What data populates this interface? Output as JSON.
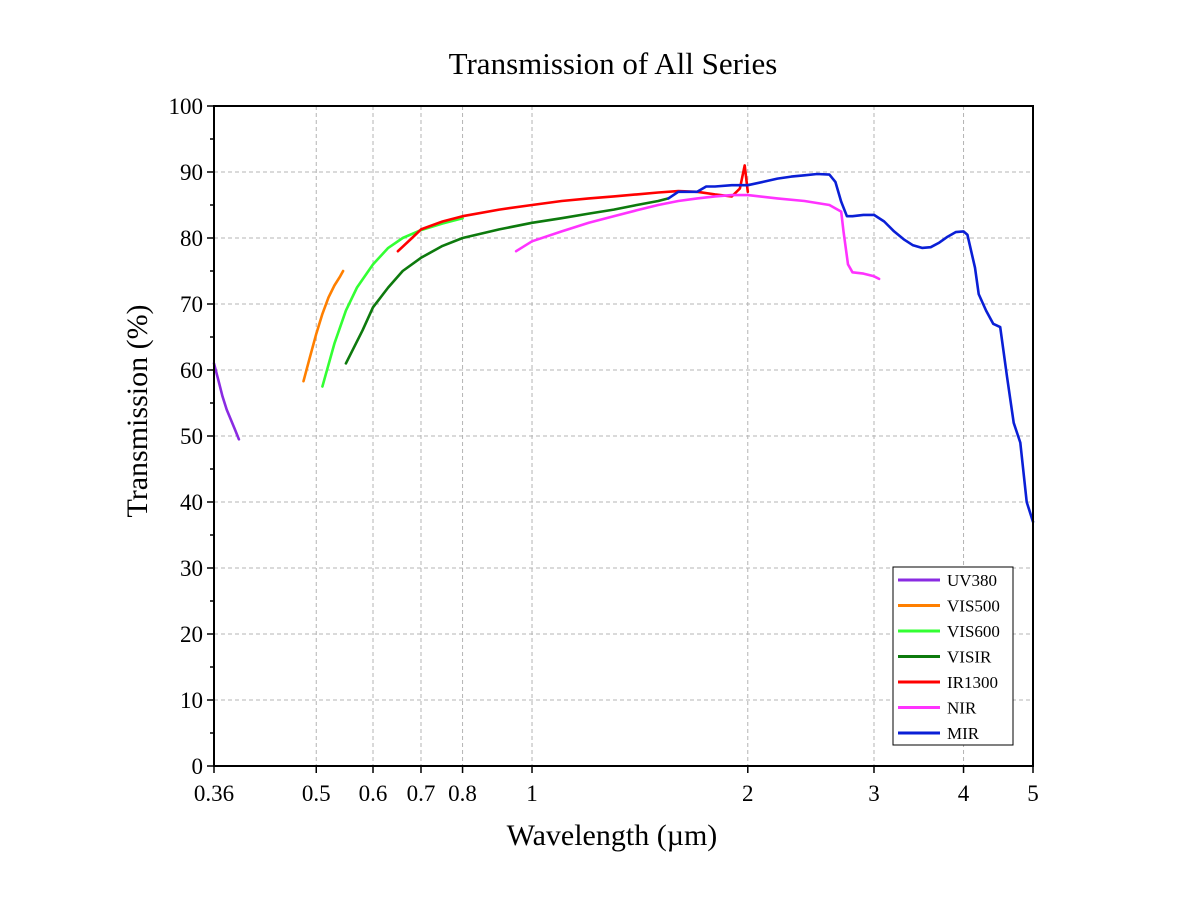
{
  "chart_data": {
    "type": "line",
    "title": "Transmission of All Series",
    "xlabel": "Wavelength (µm)",
    "ylabel": "Transmission (%)",
    "xscale": "log",
    "xlim": [
      0.36,
      5
    ],
    "ylim": [
      0,
      100
    ],
    "x_ticks": [
      {
        "value": 0.36,
        "label": "0.36"
      },
      {
        "value": 0.5,
        "label": "0.5"
      },
      {
        "value": 0.6,
        "label": "0.6"
      },
      {
        "value": 0.7,
        "label": "0.7"
      },
      {
        "value": 0.8,
        "label": "0.8"
      },
      {
        "value": 1,
        "label": "1"
      },
      {
        "value": 2,
        "label": "2"
      },
      {
        "value": 3,
        "label": "3"
      },
      {
        "value": 4,
        "label": "4"
      },
      {
        "value": 5,
        "label": "5"
      }
    ],
    "y_ticks": [
      {
        "value": 0,
        "label": "0"
      },
      {
        "value": 10,
        "label": "10"
      },
      {
        "value": 20,
        "label": "20"
      },
      {
        "value": 30,
        "label": "30"
      },
      {
        "value": 40,
        "label": "40"
      },
      {
        "value": 50,
        "label": "50"
      },
      {
        "value": 60,
        "label": "60"
      },
      {
        "value": 70,
        "label": "70"
      },
      {
        "value": 80,
        "label": "80"
      },
      {
        "value": 90,
        "label": "90"
      },
      {
        "value": 100,
        "label": "100"
      }
    ],
    "grid": true,
    "legend_position": "bottom-right",
    "series": [
      {
        "name": "UV380",
        "color": "#8a2be2",
        "x": [
          0.36,
          0.365,
          0.37,
          0.375,
          0.38,
          0.385,
          0.39
        ],
        "y": [
          61,
          58.5,
          56,
          54,
          52.5,
          51,
          49.5
        ]
      },
      {
        "name": "VIS500",
        "color": "#ff7f00",
        "x": [
          0.48,
          0.49,
          0.5,
          0.51,
          0.52,
          0.53,
          0.54,
          0.545
        ],
        "y": [
          58.3,
          62,
          65.5,
          68.5,
          71,
          72.8,
          74.2,
          75
        ]
      },
      {
        "name": "VIS600",
        "color": "#33ff33",
        "x": [
          0.51,
          0.53,
          0.55,
          0.57,
          0.6,
          0.63,
          0.66,
          0.7,
          0.75,
          0.8
        ],
        "y": [
          57.5,
          64,
          69,
          72.5,
          76,
          78.5,
          80,
          81.2,
          82.2,
          83
        ]
      },
      {
        "name": "VISIR",
        "color": "#0d7a0d",
        "x": [
          0.55,
          0.58,
          0.6,
          0.63,
          0.66,
          0.7,
          0.75,
          0.8,
          0.9,
          1.0,
          1.1,
          1.2,
          1.3,
          1.4,
          1.5,
          1.55
        ],
        "y": [
          61,
          66,
          69.5,
          72.5,
          75,
          77,
          78.8,
          80,
          81.3,
          82.3,
          83,
          83.7,
          84.3,
          85,
          85.6,
          86
        ]
      },
      {
        "name": "IR1300",
        "color": "#ff0000",
        "x": [
          0.65,
          0.68,
          0.7,
          0.75,
          0.8,
          0.9,
          1.0,
          1.1,
          1.2,
          1.3,
          1.4,
          1.5,
          1.6,
          1.7,
          1.8,
          1.9,
          1.95,
          1.98,
          2.0
        ],
        "y": [
          78,
          80,
          81.3,
          82.5,
          83.3,
          84.3,
          85,
          85.6,
          86,
          86.3,
          86.6,
          86.9,
          87.1,
          87,
          86.6,
          86.3,
          87.5,
          91,
          87
        ]
      },
      {
        "name": "NIR",
        "color": "#ff33ff",
        "x": [
          0.95,
          1.0,
          1.1,
          1.2,
          1.3,
          1.4,
          1.5,
          1.6,
          1.7,
          1.8,
          1.9,
          2.0,
          2.2,
          2.4,
          2.6,
          2.7,
          2.72,
          2.76,
          2.8,
          2.9,
          3.0,
          3.05
        ],
        "y": [
          78,
          79.5,
          81,
          82.3,
          83.3,
          84.2,
          85,
          85.6,
          86,
          86.3,
          86.5,
          86.5,
          86,
          85.6,
          85,
          84,
          81,
          76,
          74.8,
          74.6,
          74.2,
          73.8
        ]
      },
      {
        "name": "MIR",
        "color": "#0a1fd6",
        "x": [
          1.55,
          1.6,
          1.7,
          1.75,
          1.8,
          1.9,
          2.0,
          2.1,
          2.2,
          2.3,
          2.4,
          2.5,
          2.6,
          2.65,
          2.7,
          2.75,
          2.8,
          2.9,
          3.0,
          3.1,
          3.2,
          3.3,
          3.4,
          3.5,
          3.6,
          3.7,
          3.8,
          3.9,
          4.0,
          4.05,
          4.1,
          4.15,
          4.2,
          4.3,
          4.4,
          4.5,
          4.6,
          4.7,
          4.8,
          4.9,
          5.0
        ],
        "y": [
          86,
          87,
          87,
          87.8,
          87.8,
          88,
          88,
          88.5,
          89,
          89.3,
          89.5,
          89.7,
          89.6,
          88.5,
          85.5,
          83.3,
          83.3,
          83.5,
          83.5,
          82.5,
          81,
          79.8,
          78.9,
          78.5,
          78.6,
          79.3,
          80.2,
          80.9,
          81,
          80.5,
          78,
          75.5,
          71.5,
          69,
          67,
          66.5,
          59,
          52,
          49,
          40,
          37
        ]
      }
    ]
  }
}
